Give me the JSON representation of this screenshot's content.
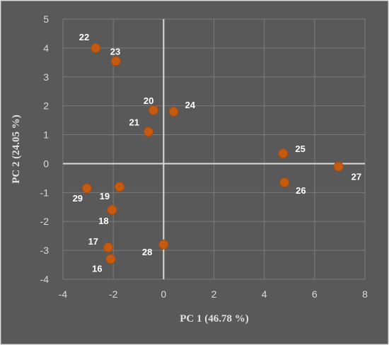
{
  "chart_data": {
    "type": "scatter",
    "title": "",
    "xlabel": "PC 1 (46.78 %)",
    "ylabel": "PC 2 (24.05 %)",
    "xlim": [
      -4,
      8
    ],
    "ylim": [
      -4,
      5
    ],
    "xticks": [
      -4,
      -2,
      0,
      2,
      4,
      6,
      8
    ],
    "yticks": [
      -4,
      -3,
      -2,
      -1,
      0,
      1,
      2,
      3,
      4,
      5
    ],
    "grid": true,
    "legend": "none",
    "point_color": "#c55a11",
    "background_color": "#595959",
    "points": [
      {
        "label": "16",
        "x": -2.1,
        "y": -3.3
      },
      {
        "label": "17",
        "x": -2.2,
        "y": -2.9
      },
      {
        "label": "18",
        "x": -2.05,
        "y": -1.6
      },
      {
        "label": "19",
        "x": -1.75,
        "y": -0.8
      },
      {
        "label": "20",
        "x": -0.4,
        "y": 1.85
      },
      {
        "label": "21",
        "x": -0.6,
        "y": 1.1
      },
      {
        "label": "22",
        "x": -2.7,
        "y": 4.0
      },
      {
        "label": "23",
        "x": -1.9,
        "y": 3.55
      },
      {
        "label": "24",
        "x": 0.4,
        "y": 1.8
      },
      {
        "label": "25",
        "x": 4.75,
        "y": 0.35
      },
      {
        "label": "26",
        "x": 4.8,
        "y": -0.65
      },
      {
        "label": "27",
        "x": 6.95,
        "y": -0.1
      },
      {
        "label": "28",
        "x": 0.0,
        "y": -2.8
      },
      {
        "label": "29",
        "x": -3.05,
        "y": -0.85
      }
    ]
  }
}
